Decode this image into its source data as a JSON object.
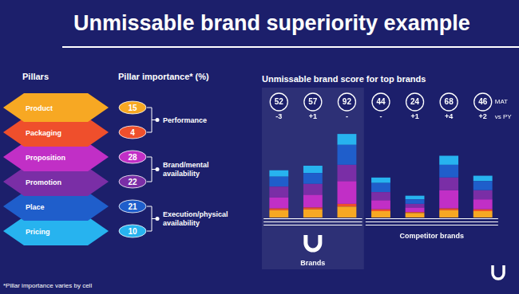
{
  "chart_data": {
    "type": "bar",
    "stacked": true,
    "title": "Unmissable brand superiority example",
    "subtitle": "Unmissable brand score for top brands",
    "categories": [
      null,
      null,
      null,
      null,
      null,
      null,
      null
    ],
    "series": [
      {
        "name": "Product",
        "color": "#f7a823",
        "importance": 15,
        "values": [
          8,
          9,
          12,
          7,
          5,
          8,
          7
        ]
      },
      {
        "name": "Packaging",
        "color": "#ef4f2c",
        "importance": 4,
        "values": [
          2,
          2,
          3,
          2,
          1,
          2,
          2
        ]
      },
      {
        "name": "Proposition",
        "color": "#c12fc6",
        "importance": 28,
        "values": [
          12,
          14,
          25,
          10,
          5,
          20,
          11
        ]
      },
      {
        "name": "Promotion",
        "color": "#7a2ea6",
        "importance": 22,
        "values": [
          12,
          12,
          18,
          9,
          4,
          14,
          10
        ]
      },
      {
        "name": "Place",
        "color": "#1f5ecb",
        "importance": 21,
        "values": [
          11,
          12,
          22,
          10,
          5,
          14,
          10
        ]
      },
      {
        "name": "Pricing",
        "color": "#27b3ef",
        "importance": 10,
        "values": [
          7,
          8,
          12,
          6,
          4,
          10,
          6
        ]
      }
    ],
    "ylim": [
      0,
      100
    ],
    "grid": false,
    "tick_labels": false,
    "data_labels": false,
    "totals": [
      52,
      57,
      92,
      44,
      24,
      68,
      46
    ],
    "totals_label": "MAT",
    "changes": [
      "-3",
      "+1",
      "-",
      "-",
      "+1",
      "+4",
      "+2"
    ],
    "changes_label": "vs PY",
    "groups": [
      {
        "label": "Brands",
        "count": 3
      },
      {
        "label": "Competitor brands",
        "count": 4
      }
    ],
    "pillars_title": "Pillars",
    "importance_title": "Pillar importance* (%)",
    "pillar_groups": [
      {
        "label": "Performance",
        "count": 2
      },
      {
        "label": "Brand/mental availability",
        "count": 2
      },
      {
        "label": "Execution/physical availability",
        "count": 2
      }
    ],
    "footnote": "*Pillar importance varies by cell"
  }
}
